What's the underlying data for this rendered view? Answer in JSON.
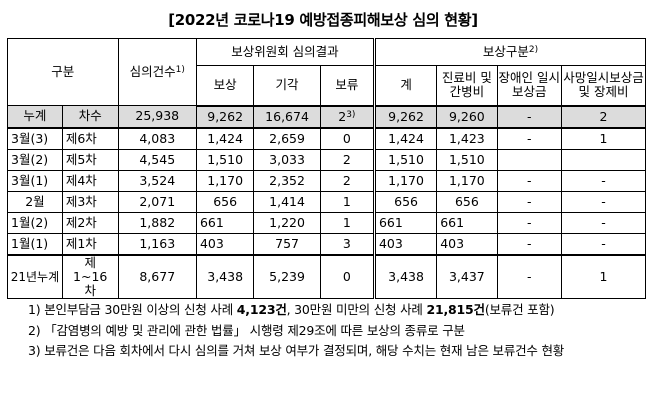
{
  "title": "[2022년 코로나19 예방접종피해보상 심의 현황]",
  "header": {
    "category": "구분",
    "review_count": "심의건수",
    "review_count_sup": "1)",
    "committee_result": "보상위원회 심의결과",
    "compensate": "보상",
    "reject": "기각",
    "pending": "보류",
    "comp_type": "보상구분",
    "comp_type_sup": "2)",
    "total": "계",
    "medical": "진료비 및 간병비",
    "disability": "장애인 일시보상금",
    "death": "사망일시보상금 및 장제비"
  },
  "total_row": {
    "label1": "누계",
    "label2": "차수",
    "review": "25,938",
    "compensate": "9,262",
    "reject": "16,674",
    "pending": "2",
    "pending_sup": "3)",
    "sum": "9,262",
    "medical": "9,260",
    "disability": "-",
    "death": "2"
  },
  "rows": [
    {
      "month": "3월(3)",
      "round": "제6차",
      "review": "4,083",
      "compensate": "1,424",
      "reject": "2,659",
      "pending": "0",
      "sum": "1,424",
      "medical": "1,423",
      "disability": "-",
      "death": "1"
    },
    {
      "month": "3월(2)",
      "round": "제5차",
      "review": "4,545",
      "compensate": "1,510",
      "reject": "3,033",
      "pending": "2",
      "sum": "1,510",
      "medical": "1,510",
      "disability": "",
      "death": ""
    },
    {
      "month": "3월(1)",
      "round": "제4차",
      "review": "3,524",
      "compensate": "1,170",
      "reject": "2,352",
      "pending": "2",
      "sum": "1,170",
      "medical": "1,170",
      "disability": "-",
      "death": "-"
    },
    {
      "month": "2월",
      "round": "제3차",
      "review": "2,071",
      "compensate": "656",
      "reject": "1,414",
      "pending": "1",
      "sum": "656",
      "medical": "656",
      "disability": "-",
      "death": "-"
    },
    {
      "month": "1월(2)",
      "round": "제2차",
      "review": "1,882",
      "compensate": "661",
      "reject": "1,220",
      "pending": "1",
      "sum": "661",
      "medical": "661",
      "disability": "-",
      "death": "-"
    },
    {
      "month": "1월(1)",
      "round": "제1차",
      "review": "1,163",
      "compensate": "403",
      "reject": "757",
      "pending": "3",
      "sum": "403",
      "medical": "403",
      "disability": "-",
      "death": "-"
    }
  ],
  "cumulative_2021": {
    "label1": "21년누계",
    "label2": "제1~16차",
    "review": "8,677",
    "compensate": "3,438",
    "reject": "5,239",
    "pending": "0",
    "sum": "3,438",
    "medical": "3,437",
    "disability": "-",
    "death": "1"
  },
  "notes": {
    "n1_a": "1) 본인부담금 30만원 이상의 신청 사례 ",
    "n1_b": "4,123건",
    "n1_c": ", 30만원 미만의 신청 사례 ",
    "n1_d": "21,815건",
    "n1_e": "(보류건 포함)",
    "n2": "2) 「감염병의 예방 및 관리에 관한 법률」 시행령 제29조에 따른 보상의 종류로 구분",
    "n3": "3) 보류건은 다음 회차에서 다시 심의를 거쳐 보상 여부가 결정되며, 해당 수치는 현재 남은 보류건수 현황"
  }
}
